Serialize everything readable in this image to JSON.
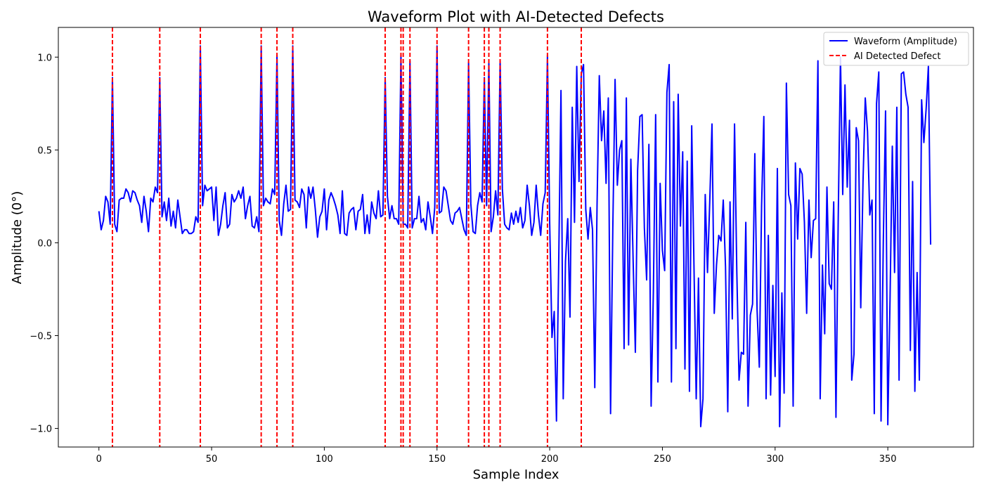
{
  "chart_data": {
    "type": "line",
    "title": "Waveform Plot with AI-Detected Defects",
    "xlabel": "Sample Index",
    "ylabel": "Amplitude (0°)",
    "xlim": [
      -18,
      388
    ],
    "ylim": [
      -1.1,
      1.16
    ],
    "xticks": [
      0,
      50,
      100,
      150,
      200,
      250,
      300,
      350
    ],
    "yticks": [
      -1.0,
      -0.5,
      0.0,
      0.5,
      1.0
    ],
    "ytick_labels": [
      "−1.0",
      "−0.5",
      "0.0",
      "0.5",
      "1.0"
    ],
    "grid": false,
    "legend_position": "upper-right",
    "legend": [
      {
        "label": "Waveform (Amplitude)",
        "style": "solid",
        "color": "#0000ff"
      },
      {
        "label": "AI Detected Defect",
        "style": "dashed",
        "color": "#ff0000"
      }
    ],
    "series": [
      {
        "name": "Waveform (Amplitude)",
        "color": "#0000ff",
        "y": [
          0.17,
          0.07,
          0.12,
          0.25,
          0.22,
          0.1,
          0.89,
          0.1,
          0.06,
          0.23,
          0.24,
          0.24,
          0.29,
          0.27,
          0.22,
          0.28,
          0.27,
          0.23,
          0.2,
          0.11,
          0.25,
          0.17,
          0.06,
          0.24,
          0.22,
          0.3,
          0.27,
          0.89,
          0.14,
          0.22,
          0.12,
          0.24,
          0.09,
          0.17,
          0.08,
          0.23,
          0.14,
          0.05,
          0.07,
          0.07,
          0.05,
          0.05,
          0.06,
          0.14,
          0.11,
          1.06,
          0.2,
          0.31,
          0.28,
          0.29,
          0.3,
          0.12,
          0.3,
          0.04,
          0.1,
          0.2,
          0.27,
          0.08,
          0.1,
          0.26,
          0.22,
          0.24,
          0.28,
          0.24,
          0.3,
          0.13,
          0.2,
          0.25,
          0.09,
          0.08,
          0.14,
          0.06,
          1.06,
          0.2,
          0.24,
          0.22,
          0.21,
          0.29,
          0.26,
          1.01,
          0.12,
          0.04,
          0.21,
          0.31,
          0.17,
          0.18,
          1.06,
          0.23,
          0.22,
          0.19,
          0.29,
          0.26,
          0.08,
          0.3,
          0.24,
          0.3,
          0.18,
          0.03,
          0.14,
          0.17,
          0.29,
          0.07,
          0.23,
          0.27,
          0.24,
          0.2,
          0.15,
          0.05,
          0.28,
          0.05,
          0.04,
          0.16,
          0.18,
          0.19,
          0.07,
          0.17,
          0.18,
          0.26,
          0.05,
          0.15,
          0.05,
          0.22,
          0.16,
          0.13,
          0.28,
          0.14,
          0.15,
          0.89,
          0.25,
          0.13,
          0.2,
          0.13,
          0.13,
          0.1,
          1.01,
          0.1,
          0.1,
          0.08,
          0.98,
          0.08,
          0.13,
          0.13,
          0.25,
          0.11,
          0.13,
          0.07,
          0.22,
          0.14,
          0.05,
          0.19,
          1.06,
          0.16,
          0.17,
          0.3,
          0.28,
          0.2,
          0.12,
          0.1,
          0.16,
          0.17,
          0.19,
          0.13,
          0.07,
          0.04,
          0.97,
          0.21,
          0.06,
          0.05,
          0.2,
          0.27,
          0.22,
          0.89,
          0.2,
          0.97,
          0.06,
          0.14,
          0.28,
          0.15,
          0.98,
          0.29,
          0.1,
          0.08,
          0.07,
          0.16,
          0.1,
          0.17,
          0.11,
          0.19,
          0.08,
          0.12,
          0.31,
          0.2,
          0.04,
          0.11,
          0.31,
          0.15,
          0.04,
          0.21,
          0.27,
          1.01,
          0.1,
          -0.51,
          -0.37,
          -0.96,
          -0.1,
          0.82,
          -0.84,
          -0.1,
          0.13,
          -0.4,
          0.73,
          0.11,
          0.95,
          0.33,
          0.91,
          0.96,
          0.18,
          0.02,
          0.19,
          0.07,
          -0.78,
          0.2,
          0.9,
          0.55,
          0.71,
          0.32,
          0.78,
          -0.92,
          0.08,
          0.88,
          0.31,
          0.5,
          0.55,
          -0.57,
          0.78,
          -0.55,
          0.45,
          -0.09,
          -0.59,
          0.39,
          0.68,
          0.69,
          0.08,
          -0.2,
          0.53,
          -0.88,
          -0.26,
          0.69,
          -0.75,
          0.32,
          -0.04,
          -0.15,
          0.81,
          0.96,
          -0.75,
          0.76,
          -0.57,
          0.8,
          0.09,
          0.49,
          -0.68,
          0.44,
          -0.8,
          0.63,
          -0.12,
          -0.84,
          -0.19,
          -0.99,
          -0.84,
          0.26,
          -0.16,
          0.22,
          0.64,
          -0.38,
          -0.12,
          0.04,
          0.01,
          0.23,
          -0.13,
          -0.91,
          0.22,
          -0.41,
          0.64,
          -0.15,
          -0.74,
          -0.59,
          -0.6,
          0.11,
          -0.88,
          -0.39,
          -0.33,
          0.48,
          -0.36,
          -0.67,
          0.2,
          0.68,
          -0.84,
          0.04,
          -0.82,
          -0.23,
          -0.72,
          0.4,
          -0.99,
          -0.27,
          -0.81,
          0.86,
          0.26,
          0.2,
          -0.88,
          0.43,
          0.02,
          0.4,
          0.37,
          0.11,
          -0.38,
          0.23,
          -0.08,
          0.12,
          0.13,
          0.98,
          -0.84,
          -0.12,
          -0.49,
          0.3,
          -0.22,
          -0.25,
          0.22,
          -0.94,
          0.13,
          1.0,
          0.26,
          0.85,
          0.3,
          0.66,
          -0.74,
          -0.6,
          0.62,
          0.55,
          -0.35,
          0.33,
          0.78,
          0.6,
          0.15,
          0.23,
          -0.92,
          0.75,
          0.92,
          -0.96,
          0.0,
          0.71,
          -0.98,
          -0.3,
          0.52,
          -0.16,
          0.73,
          -0.74,
          0.91,
          0.92,
          0.8,
          0.73,
          -0.58,
          0.33,
          -0.8,
          -0.16,
          -0.74,
          0.77,
          0.54,
          0.72,
          0.95,
          -0.01
        ]
      }
    ],
    "defects_x": [
      6,
      27,
      45,
      72,
      79,
      86,
      127,
      134,
      135,
      138,
      150,
      164,
      171,
      173,
      178,
      199,
      214
    ]
  }
}
